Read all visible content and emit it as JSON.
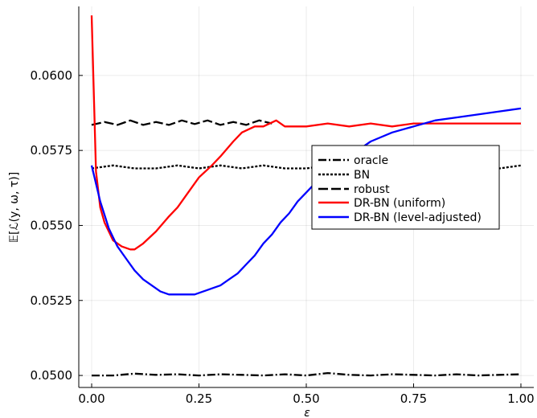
{
  "chart_data": {
    "type": "line",
    "title": "",
    "xlabel": "ε",
    "ylabel": "𝔼[ℒ(y, ω, τ)]",
    "xlim": [
      -0.03,
      1.03
    ],
    "ylim": [
      0.0496,
      0.0623
    ],
    "xticks": [
      0.0,
      0.25,
      0.5,
      0.75,
      1.0
    ],
    "xtick_labels": [
      "0.00",
      "0.25",
      "0.50",
      "0.75",
      "1.00"
    ],
    "yticks": [
      0.05,
      0.0525,
      0.055,
      0.0575,
      0.06
    ],
    "ytick_labels": [
      "0.0500",
      "0.0525",
      "0.0550",
      "0.0575",
      "0.0600"
    ],
    "grid": true,
    "legend_position": "center-right",
    "series": [
      {
        "name": "oracle",
        "color": "#000000",
        "style": "dashdot",
        "x": [
          0.0,
          0.05,
          0.1,
          0.15,
          0.2,
          0.25,
          0.3,
          0.35,
          0.4,
          0.45,
          0.5,
          0.55,
          0.6,
          0.65,
          0.7,
          0.75,
          0.8,
          0.85,
          0.9,
          0.95,
          1.0
        ],
        "y": [
          0.05,
          0.05,
          0.05006,
          0.05002,
          0.05004,
          0.05,
          0.05004,
          0.05002,
          0.05,
          0.05004,
          0.05,
          0.05008,
          0.05002,
          0.05,
          0.05004,
          0.05002,
          0.05,
          0.05004,
          0.05,
          0.05002,
          0.05004
        ]
      },
      {
        "name": "BN",
        "color": "#000000",
        "style": "dot",
        "x": [
          0.0,
          0.05,
          0.1,
          0.15,
          0.2,
          0.25,
          0.3,
          0.35,
          0.4,
          0.45,
          0.5,
          0.55,
          0.6,
          0.65,
          0.7,
          0.75,
          0.8,
          0.85,
          0.9,
          0.95,
          1.0
        ],
        "y": [
          0.0569,
          0.057,
          0.0569,
          0.0569,
          0.057,
          0.0569,
          0.057,
          0.0569,
          0.057,
          0.0569,
          0.0569,
          0.057,
          0.0569,
          0.0569,
          0.057,
          0.0569,
          0.057,
          0.0569,
          0.057,
          0.0569,
          0.057
        ]
      },
      {
        "name": "robust",
        "color": "#000000",
        "style": "dash",
        "x": [
          0.0,
          0.03,
          0.06,
          0.09,
          0.12,
          0.15,
          0.18,
          0.21,
          0.24,
          0.27,
          0.3,
          0.33,
          0.36,
          0.39,
          0.42
        ],
        "y": [
          0.05835,
          0.05845,
          0.05835,
          0.0585,
          0.05835,
          0.05845,
          0.05835,
          0.0585,
          0.05838,
          0.0585,
          0.05835,
          0.05845,
          0.05835,
          0.0585,
          0.0584
        ]
      },
      {
        "name": "DR-BN (uniform)",
        "color": "#ff0000",
        "style": "solid",
        "x": [
          0.0,
          0.01,
          0.02,
          0.03,
          0.05,
          0.07,
          0.09,
          0.1,
          0.12,
          0.15,
          0.18,
          0.2,
          0.22,
          0.25,
          0.28,
          0.3,
          0.33,
          0.35,
          0.38,
          0.4,
          0.43,
          0.45,
          0.5,
          0.55,
          0.6,
          0.65,
          0.7,
          0.75,
          0.8,
          0.85,
          0.9,
          0.95,
          1.0
        ],
        "y": [
          0.062,
          0.0568,
          0.0556,
          0.0551,
          0.0545,
          0.0543,
          0.0542,
          0.0542,
          0.0544,
          0.0548,
          0.0553,
          0.0556,
          0.056,
          0.0566,
          0.057,
          0.0573,
          0.0578,
          0.0581,
          0.0583,
          0.0583,
          0.0585,
          0.0583,
          0.0583,
          0.0584,
          0.0583,
          0.0584,
          0.0583,
          0.0584,
          0.0584,
          0.0584,
          0.0584,
          0.0584,
          0.0584
        ]
      },
      {
        "name": "DR-BN (level-adjusted)",
        "color": "#0000ff",
        "style": "solid",
        "x": [
          0.0,
          0.02,
          0.04,
          0.06,
          0.08,
          0.1,
          0.12,
          0.14,
          0.16,
          0.18,
          0.2,
          0.22,
          0.24,
          0.26,
          0.28,
          0.3,
          0.32,
          0.34,
          0.36,
          0.38,
          0.4,
          0.42,
          0.44,
          0.46,
          0.48,
          0.5,
          0.52,
          0.55,
          0.6,
          0.65,
          0.7,
          0.75,
          0.8,
          0.85,
          0.9,
          0.95,
          1.0
        ],
        "y": [
          0.057,
          0.0558,
          0.0549,
          0.0543,
          0.0539,
          0.0535,
          0.0532,
          0.053,
          0.0528,
          0.0527,
          0.0527,
          0.0527,
          0.0527,
          0.0528,
          0.0529,
          0.053,
          0.0532,
          0.0534,
          0.0537,
          0.054,
          0.0544,
          0.0547,
          0.0551,
          0.0554,
          0.0558,
          0.0561,
          0.0564,
          0.0568,
          0.0573,
          0.0578,
          0.0581,
          0.0583,
          0.0585,
          0.0586,
          0.0587,
          0.0588,
          0.0589
        ]
      }
    ]
  }
}
